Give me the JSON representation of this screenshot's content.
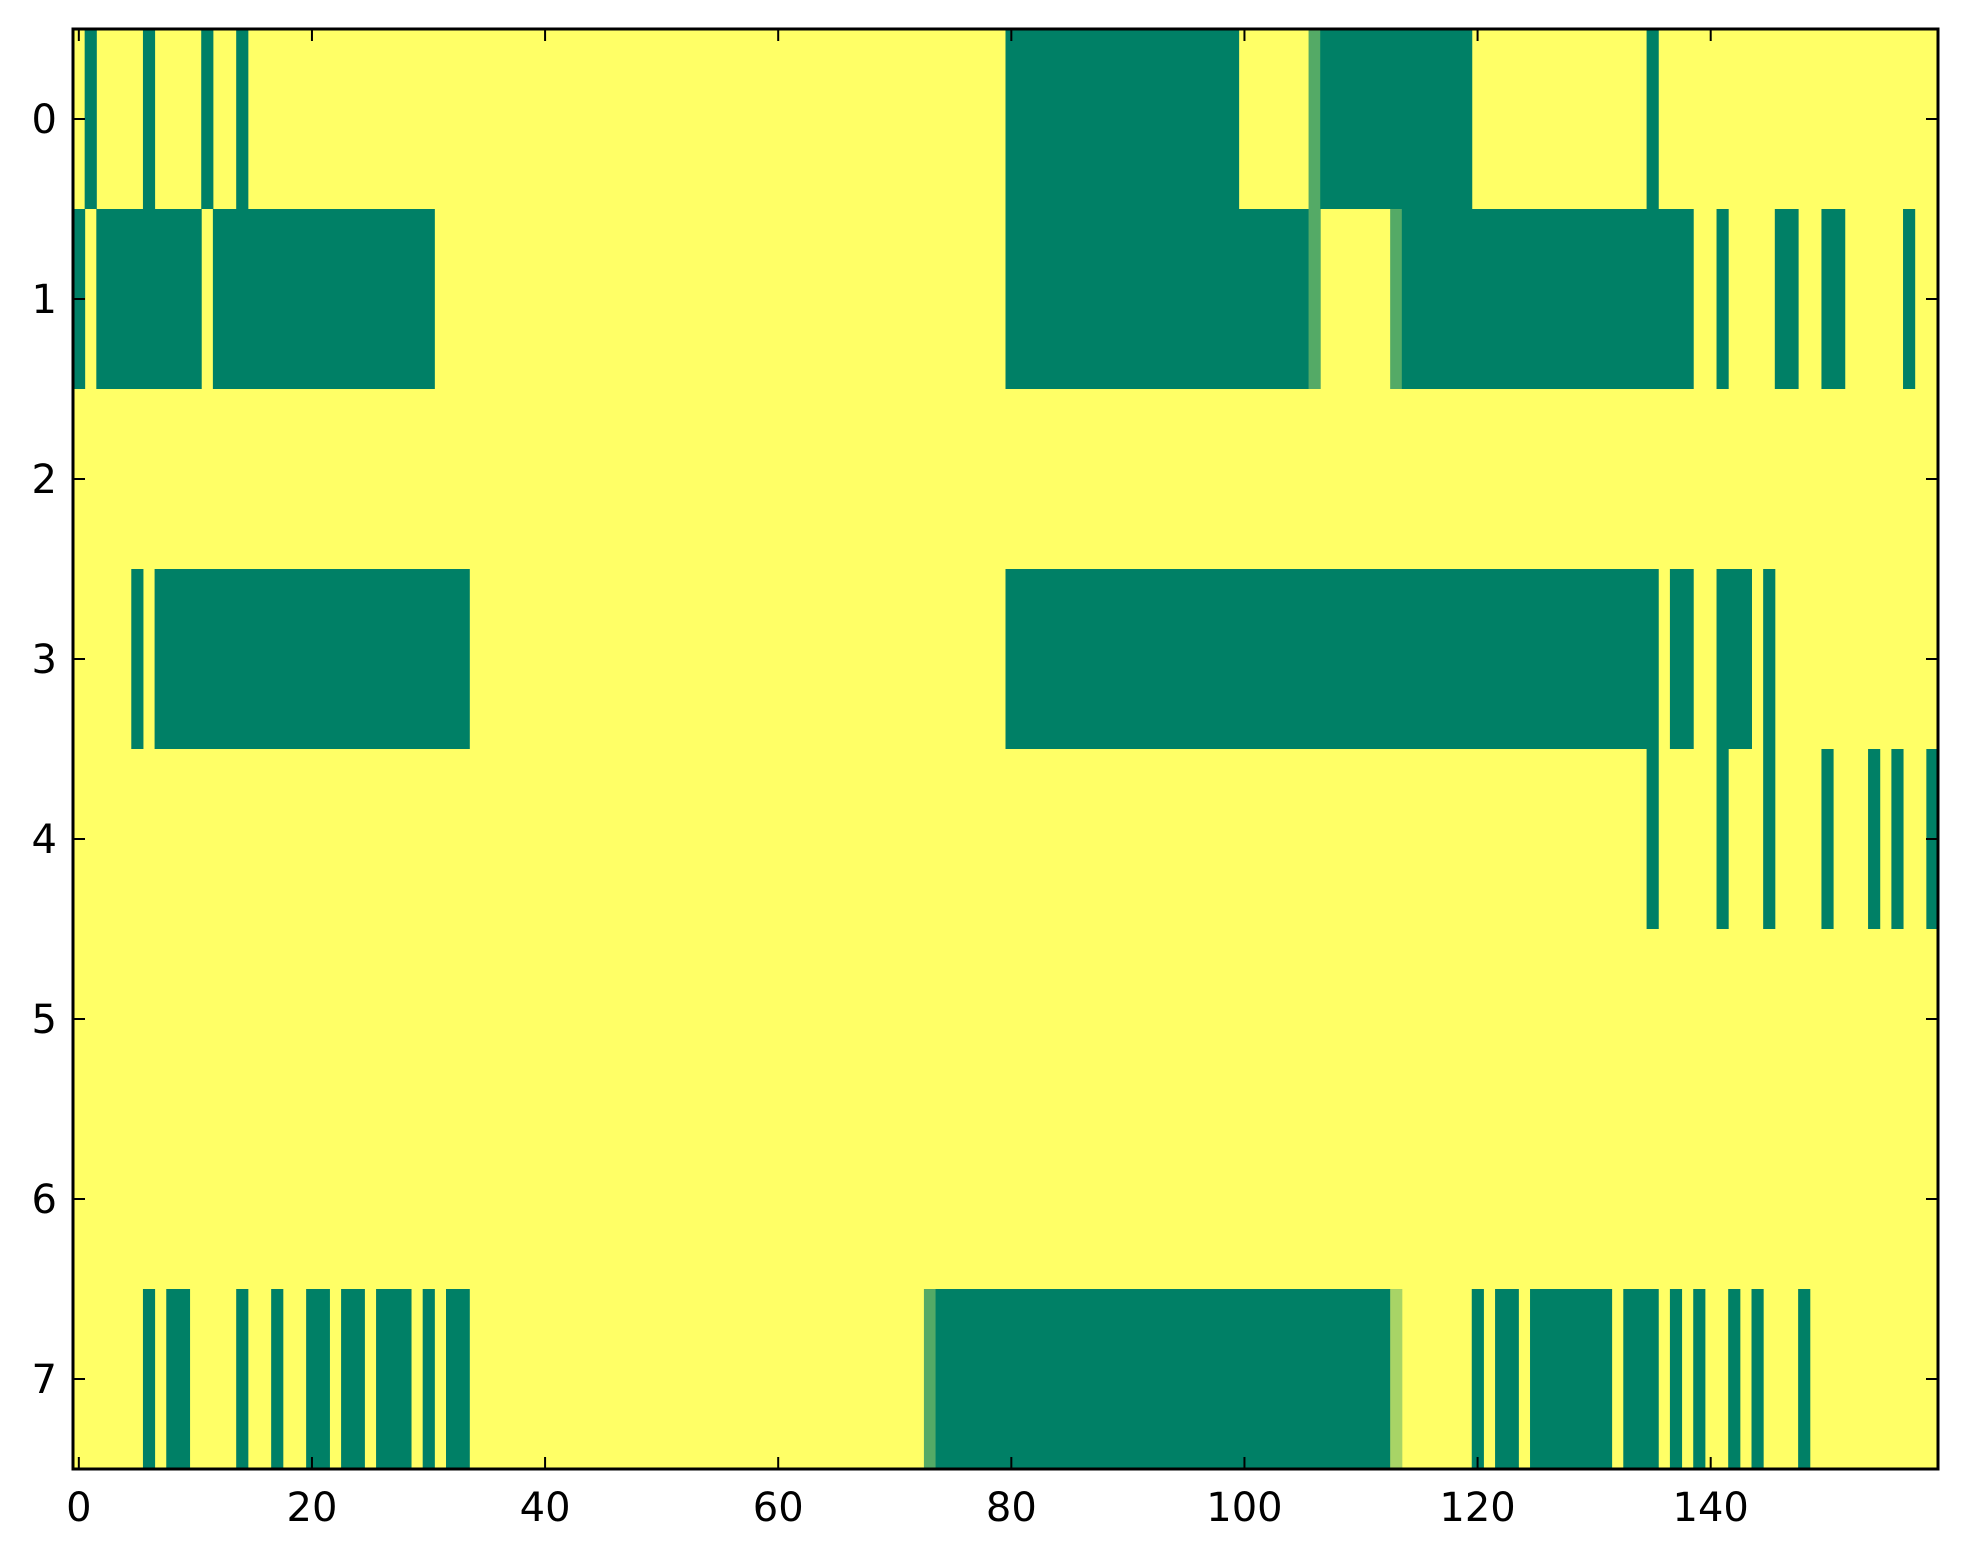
{
  "chart_data": {
    "type": "heatmap",
    "title": "",
    "xlabel": "",
    "ylabel": "",
    "xlim": [
      -0.5,
      159.5
    ],
    "ylim": [
      7.5,
      -0.5
    ],
    "x_ticks": [
      0,
      20,
      40,
      60,
      80,
      100,
      120,
      140
    ],
    "x_tick_labels": [
      "0",
      "20",
      "40",
      "60",
      "80",
      "100",
      "120",
      "140"
    ],
    "y_ticks": [
      0,
      1,
      2,
      3,
      4,
      5,
      6,
      7
    ],
    "y_tick_labels": [
      "0",
      "1",
      "2",
      "3",
      "4",
      "5",
      "6",
      "7"
    ],
    "n_rows": 8,
    "n_cols": 160,
    "grid": false,
    "colormap": "summer",
    "colors": {
      "low": "#008066",
      "mid_low": "#4da566",
      "mid_high": "#a6d366",
      "high": "#ffff66"
    },
    "background_value": 1.0,
    "value_runs_description": "Each row lists runs [start_col, end_col_inclusive, value]; all other cells have background_value.",
    "rows": [
      {
        "row": 0,
        "runs": [
          [
            1,
            1,
            0
          ],
          [
            6,
            6,
            0
          ],
          [
            11,
            11,
            0
          ],
          [
            14,
            14,
            0
          ],
          [
            80,
            99,
            0
          ],
          [
            106,
            106,
            0.33
          ],
          [
            107,
            119,
            0
          ],
          [
            135,
            135,
            0
          ]
        ]
      },
      {
        "row": 1,
        "runs": [
          [
            0,
            0,
            0
          ],
          [
            2,
            10,
            0
          ],
          [
            12,
            30,
            0
          ],
          [
            80,
            105,
            0
          ],
          [
            106,
            106,
            0.33
          ],
          [
            113,
            113,
            0.33
          ],
          [
            114,
            138,
            0
          ],
          [
            141,
            141,
            0
          ],
          [
            146,
            147,
            0
          ],
          [
            150,
            151,
            0
          ],
          [
            157,
            157,
            0
          ]
        ]
      },
      {
        "row": 2,
        "runs": []
      },
      {
        "row": 3,
        "runs": [
          [
            5,
            5,
            0
          ],
          [
            7,
            33,
            0
          ],
          [
            80,
            135,
            0
          ],
          [
            137,
            138,
            0
          ],
          [
            141,
            143,
            0
          ],
          [
            145,
            145,
            0
          ]
        ]
      },
      {
        "row": 4,
        "runs": [
          [
            135,
            135,
            0
          ],
          [
            141,
            141,
            0
          ],
          [
            145,
            145,
            0
          ],
          [
            150,
            150,
            0
          ],
          [
            154,
            154,
            0
          ],
          [
            156,
            156,
            0
          ],
          [
            159,
            159,
            0
          ]
        ]
      },
      {
        "row": 5,
        "runs": []
      },
      {
        "row": 6,
        "runs": []
      },
      {
        "row": 7,
        "runs": [
          [
            6,
            6,
            0
          ],
          [
            8,
            9,
            0
          ],
          [
            14,
            14,
            0
          ],
          [
            17,
            17,
            0
          ],
          [
            20,
            21,
            0
          ],
          [
            23,
            24,
            0
          ],
          [
            26,
            28,
            0
          ],
          [
            30,
            30,
            0
          ],
          [
            32,
            33,
            0
          ],
          [
            73,
            73,
            0.33
          ],
          [
            74,
            112,
            0
          ],
          [
            113,
            113,
            0.66
          ],
          [
            120,
            120,
            0
          ],
          [
            122,
            123,
            0
          ],
          [
            125,
            131,
            0
          ],
          [
            133,
            135,
            0
          ],
          [
            137,
            137,
            0
          ],
          [
            139,
            139,
            0
          ],
          [
            142,
            142,
            0
          ],
          [
            144,
            144,
            0
          ],
          [
            148,
            148,
            0
          ]
        ]
      }
    ]
  }
}
